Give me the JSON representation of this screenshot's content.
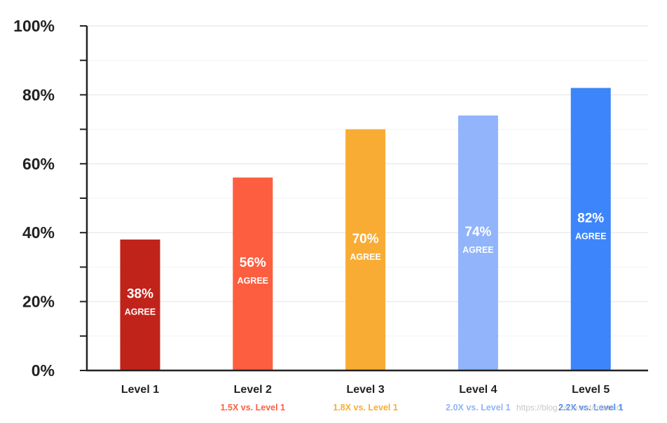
{
  "chart_data": {
    "type": "bar",
    "categories": [
      "Level 1",
      "Level 2",
      "Level 3",
      "Level 4",
      "Level 5"
    ],
    "values": [
      38,
      56,
      70,
      74,
      82
    ],
    "value_labels": [
      "38%",
      "56%",
      "70%",
      "74%",
      "82%"
    ],
    "bar_caption": "AGREE",
    "subtitles": [
      "",
      "1.5X vs. Level 1",
      "1.8X vs. Level 1",
      "2.0X vs. Level 1",
      "2.2X vs. Level 1"
    ],
    "colors": [
      "#c0231a",
      "#fd5e40",
      "#f9ac34",
      "#91b4fb",
      "#3d85fa"
    ],
    "ylim": [
      0,
      100
    ],
    "yticks": [
      0,
      20,
      40,
      60,
      80,
      100
    ],
    "ytick_labels": [
      "0%",
      "20%",
      "40%",
      "60%",
      "80%",
      "100%"
    ],
    "grid": true,
    "title": "",
    "xlabel": "",
    "ylabel": ""
  },
  "watermark": "https://blog.csdn.net/miaocn"
}
